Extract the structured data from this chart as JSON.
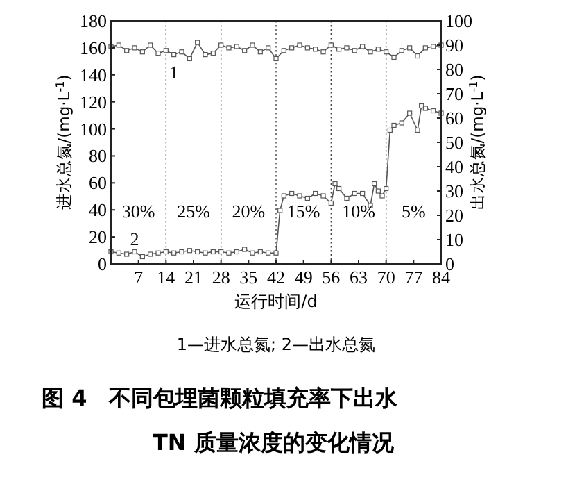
{
  "chart_data": {
    "type": "line",
    "title": "图 4　不同包埋菌颗粒填充率下出水\nTN 质量浓度的变化情况",
    "xlabel": "运行时间/d",
    "ylabel": "进水总氮/(mg·L$^{-1}$)",
    "y2label": "出水总氮/(mg·L$^{-1}$)",
    "xlim": [
      0,
      84
    ],
    "xticks": [
      7,
      14,
      21,
      28,
      35,
      42,
      49,
      56,
      63,
      70,
      77,
      84
    ],
    "ylim": [
      0,
      180
    ],
    "yticks": [
      0,
      20,
      40,
      60,
      80,
      100,
      120,
      140,
      160,
      180
    ],
    "y2lim": [
      0,
      100
    ],
    "y2ticks": [
      0,
      10,
      20,
      30,
      40,
      50,
      60,
      70,
      80,
      90,
      100
    ],
    "marker": "square",
    "grid": false,
    "series": [
      {
        "name": "1",
        "color": "#555555",
        "x": [
          0,
          2,
          4,
          6,
          8,
          10,
          12,
          14,
          16,
          18,
          20,
          22,
          24,
          26,
          28,
          30,
          32,
          34,
          36,
          38,
          40,
          42,
          44,
          46,
          48,
          50,
          52,
          54,
          56,
          58,
          60,
          62,
          64,
          66,
          68,
          70,
          72,
          74,
          76,
          78,
          80,
          82,
          84
        ],
        "values": [
          161,
          162,
          158,
          160,
          157,
          162,
          156,
          158,
          155,
          157,
          152,
          164,
          155,
          156,
          162,
          160,
          161,
          158,
          162,
          157,
          160,
          152,
          158,
          160,
          162,
          160,
          159,
          157,
          162,
          159,
          160,
          158,
          161,
          157,
          159,
          157,
          153,
          158,
          160,
          154,
          160,
          161,
          162
        ]
      },
      {
        "name": "2",
        "color": "#555555",
        "axis": "y2",
        "x": [
          0,
          2,
          4,
          6,
          8,
          10,
          12,
          14,
          16,
          18,
          20,
          22,
          24,
          26,
          28,
          30,
          32,
          34,
          36,
          38,
          40,
          42,
          43,
          44,
          46,
          48,
          50,
          52,
          54,
          56,
          57,
          58,
          60,
          62,
          64,
          66,
          67,
          68,
          69,
          70,
          71,
          72,
          74,
          76,
          78,
          79,
          80,
          82,
          84
        ],
        "values": [
          5,
          4.5,
          4,
          5,
          3,
          4,
          4.5,
          5,
          4.5,
          5,
          5.5,
          5,
          4.5,
          5,
          5,
          4.5,
          5,
          6,
          4.5,
          5,
          4.5,
          4.5,
          22,
          28,
          29,
          28,
          27,
          29,
          28,
          25,
          33,
          31,
          27,
          29,
          29,
          24,
          33,
          30,
          28,
          31,
          55,
          57,
          58,
          62,
          55,
          65,
          64,
          63,
          62
        ]
      }
    ],
    "ref_lines": [
      {
        "axis": "x",
        "value": 14,
        "line_style": "dotted"
      },
      {
        "axis": "x",
        "value": 28,
        "line_style": "dotted"
      },
      {
        "axis": "x",
        "value": 42,
        "line_style": "dotted"
      },
      {
        "axis": "x",
        "value": 56,
        "line_style": "dotted"
      },
      {
        "axis": "x",
        "value": 70,
        "line_style": "dotted"
      }
    ],
    "annotations": [
      "30%",
      "25%",
      "20%",
      "15%",
      "10%",
      "5%",
      "1—进水总氮; 2—出水总氮"
    ]
  }
}
